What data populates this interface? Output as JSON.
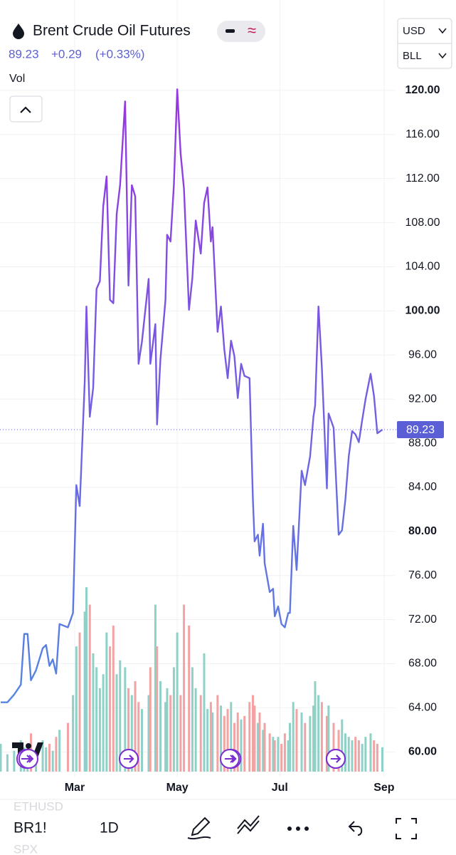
{
  "header": {
    "title": "Brent Crude Oil Futures",
    "last": "89.23",
    "change": "+0.29",
    "change_pct": "(+0.33%)",
    "vol_label": "Vol",
    "currency": "USD",
    "unit": "BLL"
  },
  "chart_data": {
    "type": "line",
    "x": [
      16,
      20,
      24,
      28,
      30,
      32,
      34,
      37,
      41,
      43,
      45,
      47,
      49,
      51,
      56,
      59,
      61,
      63,
      66,
      67,
      69,
      71,
      73,
      75,
      77,
      79,
      81,
      83,
      85,
      87,
      90,
      92,
      94,
      96,
      98,
      100,
      104,
      105,
      108,
      109,
      111,
      114,
      115,
      117,
      119,
      121,
      123,
      125,
      128,
      130,
      132,
      135,
      137,
      139,
      141,
      142,
      145,
      147,
      149,
      151,
      153,
      155,
      157,
      159,
      161,
      164,
      166,
      167,
      169,
      170,
      172,
      173,
      176,
      178,
      179,
      181,
      183,
      185,
      187,
      188,
      190,
      192,
      195,
      197,
      200,
      202,
      203,
      205,
      207,
      210,
      211,
      214,
      217,
      219,
      221,
      223,
      225,
      227,
      229,
      231,
      233,
      236,
      238,
      240,
      243
    ],
    "series": [
      {
        "name": "BR1!",
        "color": "#5b6ee0",
        "values": [
          64.5,
          64.5,
          65.2,
          66.1,
          70.7,
          70.7,
          66.5,
          67.4,
          69.4,
          69.7,
          67.8,
          68.4,
          67.1,
          71.6,
          71.3,
          72.6,
          84.2,
          82.3,
          93.6,
          100.4,
          90.4,
          93.0,
          102.0,
          102.7,
          109.5,
          112.2,
          101.0,
          100.7,
          108.8,
          111.4,
          119.0,
          102.3,
          111.4,
          110.4,
          95.2,
          97.2,
          102.9,
          95.2,
          98.8,
          89.7,
          95.6,
          101.0,
          106.9,
          106.3,
          111.4,
          120.1,
          114.3,
          111.1,
          100.1,
          103.0,
          108.2,
          105.2,
          109.8,
          111.2,
          106.3,
          107.6,
          98.1,
          100.4,
          96.5,
          93.9,
          97.3,
          95.9,
          92.1,
          95.2,
          94.1,
          93.9,
          82.9,
          79.1,
          79.7,
          77.8,
          80.7,
          77.1,
          74.5,
          74.8,
          72.3,
          73.2,
          71.6,
          71.3,
          72.6,
          72.6,
          80.5,
          76.5,
          85.5,
          84.2,
          86.8,
          90.4,
          91.4,
          100.4,
          94.9,
          83.9,
          90.7,
          89.4,
          79.7,
          80.1,
          82.9,
          86.8,
          89.1,
          88.8,
          88.1,
          90.1,
          92.0,
          94.3,
          92.3,
          88.9,
          89.23
        ],
        "volume": [
          40,
          25,
          30,
          45,
          35,
          40,
          55,
          30,
          45,
          35,
          40,
          30,
          50,
          60,
          70,
          110,
          180,
          200,
          230,
          265,
          240,
          170,
          150,
          120,
          140,
          200,
          180,
          210,
          140,
          160,
          150,
          120,
          110,
          130,
          100,
          90,
          110,
          150,
          240,
          180,
          130,
          100,
          120,
          110,
          150,
          200,
          110,
          240,
          210,
          150,
          120,
          110,
          170,
          90,
          100,
          85,
          110,
          95,
          80,
          90,
          100,
          70,
          85,
          75,
          80,
          100,
          110,
          95,
          70,
          85,
          60,
          70,
          55,
          50,
          45,
          50,
          40,
          55,
          45,
          70,
          100,
          90,
          85,
          70,
          80,
          95,
          130,
          110,
          100,
          80,
          95,
          70,
          60,
          75,
          55,
          50,
          45,
          50,
          45,
          40,
          50,
          55,
          45,
          40,
          35
        ]
      }
    ],
    "gradient": [
      "#4a90e2",
      "#9b30e0"
    ],
    "volume_colors": [
      "#8fd1c6",
      "#f2a3a3"
    ],
    "volume_ylim": [
      0,
      300
    ],
    "last_price": {
      "value": 89.23,
      "label": "89.23"
    },
    "xlim": [
      15.6,
      250.4
    ],
    "xticks": [
      {
        "value": 60,
        "label": "Mar"
      },
      {
        "value": 121,
        "label": "May"
      },
      {
        "value": 182,
        "label": "Jul"
      },
      {
        "value": 244,
        "label": "Sep"
      }
    ],
    "ylim": [
      57.5,
      124
    ],
    "yticks": [
      {
        "value": 60,
        "label": "60.00"
      },
      {
        "value": 64,
        "label": "64.00"
      },
      {
        "value": 68,
        "label": "68.00"
      },
      {
        "value": 72,
        "label": "72.00"
      },
      {
        "value": 76,
        "label": "76.00"
      },
      {
        "value": 80,
        "label": "80.00"
      },
      {
        "value": 84,
        "label": "84.00"
      },
      {
        "value": 88,
        "label": "88.00"
      },
      {
        "value": 92,
        "label": "92.00"
      },
      {
        "value": 96,
        "label": "96.00"
      },
      {
        "value": 100,
        "label": "100.00"
      },
      {
        "value": 104,
        "label": "104.00"
      },
      {
        "value": 108,
        "label": "108.00"
      },
      {
        "value": 112,
        "label": "112.00"
      },
      {
        "value": 116,
        "label": "116.00"
      },
      {
        "value": 120,
        "label": "120.00"
      }
    ],
    "grid": true
  },
  "toolbar": {
    "symbol_above": "ETHUSD",
    "symbol": "BR1!",
    "interval": "1D",
    "symbol_below": "SPX"
  }
}
